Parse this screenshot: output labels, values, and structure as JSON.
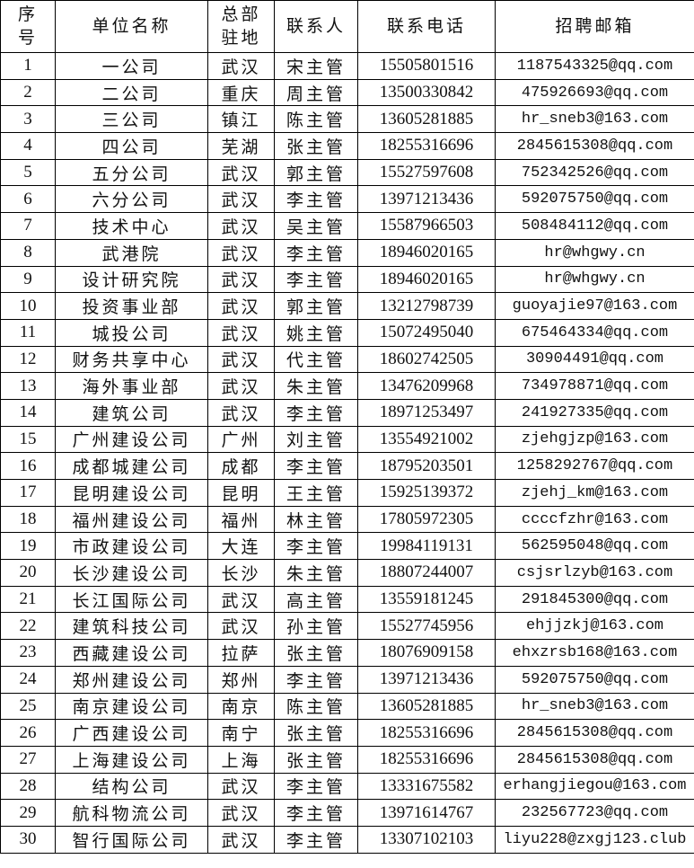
{
  "headers": [
    "序号",
    "单位名称",
    "总部驻地",
    "联系人",
    "联系电话",
    "招聘邮箱"
  ],
  "rows": [
    [
      "1",
      "一公司",
      "武汉",
      "宋主管",
      "15505801516",
      "1187543325@qq.com"
    ],
    [
      "2",
      "二公司",
      "重庆",
      "周主管",
      "13500330842",
      "475926693@qq.com"
    ],
    [
      "3",
      "三公司",
      "镇江",
      "陈主管",
      "13605281885",
      "hr_sneb3@163.com"
    ],
    [
      "4",
      "四公司",
      "芜湖",
      "张主管",
      "18255316696",
      "2845615308@qq.com"
    ],
    [
      "5",
      "五分公司",
      "武汉",
      "郭主管",
      "15527597608",
      "752342526@qq.com"
    ],
    [
      "6",
      "六分公司",
      "武汉",
      "李主管",
      "13971213436",
      "592075750@qq.com"
    ],
    [
      "7",
      "技术中心",
      "武汉",
      "吴主管",
      "15587966503",
      "508484112@qq.com"
    ],
    [
      "8",
      "武港院",
      "武汉",
      "李主管",
      "18946020165",
      "hr@whgwy.cn"
    ],
    [
      "9",
      "设计研究院",
      "武汉",
      "李主管",
      "18946020165",
      "hr@whgwy.cn"
    ],
    [
      "10",
      "投资事业部",
      "武汉",
      "郭主管",
      "13212798739",
      "guoyajie97@163.com"
    ],
    [
      "11",
      "城投公司",
      "武汉",
      "姚主管",
      "15072495040",
      "675464334@qq.com"
    ],
    [
      "12",
      "财务共享中心",
      "武汉",
      "代主管",
      "18602742505",
      "30904491@qq.com"
    ],
    [
      "13",
      "海外事业部",
      "武汉",
      "朱主管",
      "13476209968",
      "734978871@qq.com"
    ],
    [
      "14",
      "建筑公司",
      "武汉",
      "李主管",
      "18971253497",
      "241927335@qq.com"
    ],
    [
      "15",
      "广州建设公司",
      "广州",
      "刘主管",
      "13554921002",
      "zjehgjzp@163.com"
    ],
    [
      "16",
      "成都城建公司",
      "成都",
      "李主管",
      "18795203501",
      "1258292767@qq.com"
    ],
    [
      "17",
      "昆明建设公司",
      "昆明",
      "王主管",
      "15925139372",
      "zjehj_km@163.com"
    ],
    [
      "18",
      "福州建设公司",
      "福州",
      "林主管",
      "17805972305",
      "ccccfzhr@163.com"
    ],
    [
      "19",
      "市政建设公司",
      "大连",
      "李主管",
      "19984119131",
      "562595048@qq.com"
    ],
    [
      "20",
      "长沙建设公司",
      "长沙",
      "朱主管",
      "18807244007",
      "csjsrlzyb@163.com"
    ],
    [
      "21",
      "长江国际公司",
      "武汉",
      "高主管",
      "13559181245",
      "291845300@qq.com"
    ],
    [
      "22",
      "建筑科技公司",
      "武汉",
      "孙主管",
      "15527745956",
      "ehjjzkj@163.com"
    ],
    [
      "23",
      "西藏建设公司",
      "拉萨",
      "张主管",
      "18076909158",
      "ehxzrsb168@163.com"
    ],
    [
      "24",
      "郑州建设公司",
      "郑州",
      "李主管",
      "13971213436",
      "592075750@qq.com"
    ],
    [
      "25",
      "南京建设公司",
      "南京",
      "陈主管",
      "13605281885",
      "hr_sneb3@163.com"
    ],
    [
      "26",
      "广西建设公司",
      "南宁",
      "张主管",
      "18255316696",
      "2845615308@qq.com"
    ],
    [
      "27",
      "上海建设公司",
      "上海",
      "张主管",
      "18255316696",
      "2845615308@qq.com"
    ],
    [
      "28",
      "结构公司",
      "武汉",
      "李主管",
      "13331675582",
      "erhangjiegou@163.com"
    ],
    [
      "29",
      "航科物流公司",
      "武汉",
      "李主管",
      "13971614767",
      "232567723@qq.com"
    ],
    [
      "30",
      "智行国际公司",
      "武汉",
      "李主管",
      "13307102103",
      "liyu228@zxgj123.club"
    ]
  ]
}
